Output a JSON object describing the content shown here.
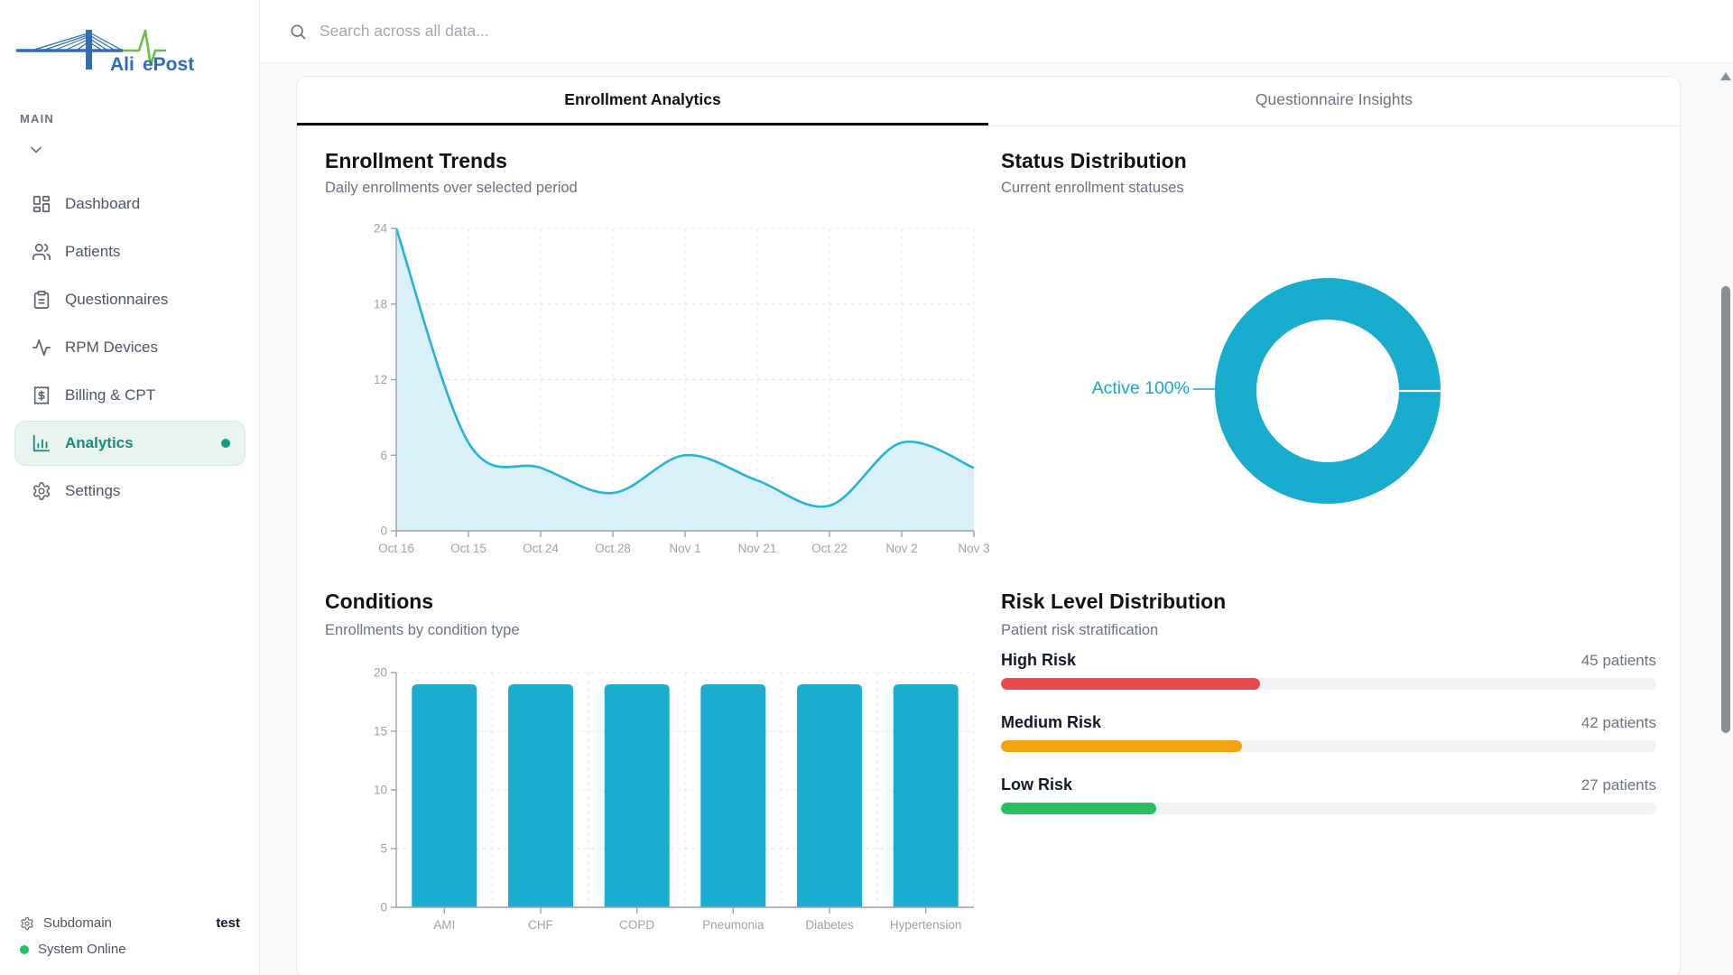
{
  "brand": {
    "name_left": "Ali",
    "name_right": "ePost"
  },
  "sidebar": {
    "section_label": "MAIN",
    "items": [
      {
        "label": "Dashboard"
      },
      {
        "label": "Patients"
      },
      {
        "label": "Questionnaires"
      },
      {
        "label": "RPM Devices"
      },
      {
        "label": "Billing & CPT"
      },
      {
        "label": "Analytics"
      },
      {
        "label": "Settings"
      }
    ],
    "active_item": "Analytics",
    "footer": {
      "subdomain_label": "Subdomain",
      "subdomain_value": "test",
      "status_label": "System Online"
    }
  },
  "search": {
    "placeholder": "Search across all data..."
  },
  "tabs": [
    {
      "label": "Enrollment Analytics",
      "active": true
    },
    {
      "label": "Questionnaire Insights",
      "active": false
    }
  ],
  "panels": {
    "trends": {
      "title": "Enrollment Trends",
      "subtitle": "Daily enrollments over selected period"
    },
    "status": {
      "title": "Status Distribution",
      "subtitle": "Current enrollment statuses",
      "callout": "Active 100%"
    },
    "conditions": {
      "title": "Conditions",
      "subtitle": "Enrollments by condition type"
    },
    "risk": {
      "title": "Risk Level Distribution",
      "subtitle": "Patient risk stratification",
      "rows": [
        {
          "label": "High Risk",
          "value": 45,
          "value_text": "45 patients",
          "color": "#e8494f"
        },
        {
          "label": "Medium Risk",
          "value": 42,
          "value_text": "42 patients",
          "color": "#f2a30f"
        },
        {
          "label": "Low Risk",
          "value": 27,
          "value_text": "27 patients",
          "color": "#2abf5e"
        }
      ]
    }
  },
  "chart_data": [
    {
      "type": "area",
      "title": "Enrollment Trends",
      "x": [
        "Oct 16",
        "Oct 15",
        "Oct 24",
        "Oct 28",
        "Nov 1",
        "Nov 21",
        "Oct 22",
        "Nov 2",
        "Nov 3"
      ],
      "values": [
        24,
        7,
        5,
        3,
        6,
        4,
        2,
        7,
        5
      ],
      "ylim": [
        0,
        24
      ],
      "yticks": [
        0,
        6,
        12,
        18,
        24
      ],
      "line_color": "#25b3d4",
      "fill_color": "#d9f0f8",
      "grid": true,
      "legend_position": "none"
    },
    {
      "type": "pie",
      "title": "Status Distribution",
      "donut": true,
      "slices": [
        {
          "label": "Active",
          "pct": 100,
          "color": "#18acce"
        }
      ],
      "callout": "Active 100%",
      "callout_color": "#1aa7c9"
    },
    {
      "type": "bar",
      "title": "Conditions",
      "categories": [
        "AMI",
        "CHF",
        "COPD",
        "Pneumonia",
        "Diabetes",
        "Hypertension"
      ],
      "values": [
        19,
        19,
        19,
        19,
        19,
        19
      ],
      "ylim": [
        0,
        20
      ],
      "yticks": [
        0,
        5,
        10,
        15,
        20
      ],
      "bar_color": "#1badd0",
      "grid": true
    },
    {
      "type": "bar",
      "title": "Risk Level Distribution",
      "categories": [
        "High Risk",
        "Medium Risk",
        "Low Risk"
      ],
      "values": [
        45,
        42,
        27
      ],
      "unit": "patients",
      "colors": [
        "#e8494f",
        "#f2a30f",
        "#2abf5e"
      ]
    }
  ],
  "colors": {
    "accent": "#1badd0",
    "active_nav_bg": "#e8f5ef",
    "active_nav_text": "#16897b",
    "online_green": "#22c55e"
  }
}
